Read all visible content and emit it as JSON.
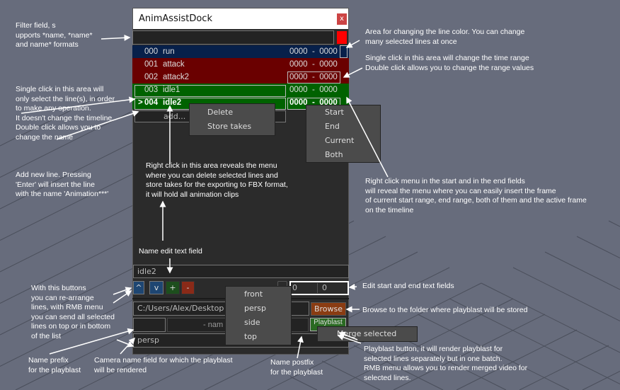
{
  "window": {
    "title": "AnimAssistDock",
    "close": "x"
  },
  "filter": {
    "value": "",
    "color": "#ff0000"
  },
  "rows": [
    {
      "marker": "",
      "num": "000",
      "name": "run",
      "range": "0000  -  0000",
      "bg": "#07204a"
    },
    {
      "marker": "",
      "num": "001",
      "name": "attack",
      "range": "0000  -  0000",
      "bg": "#6a0000"
    },
    {
      "marker": "",
      "num": "002",
      "name": "attack2",
      "range": "0000  -  0000",
      "bg": "#6a0000"
    },
    {
      "marker": "",
      "num": "003",
      "name": "idle1",
      "range": "0000  -  0000",
      "bg": "#006200"
    },
    {
      "marker": ">",
      "num": "004",
      "name": "idle2",
      "range": "0000  -  0000",
      "bg": "#006200"
    }
  ],
  "add_label": "add...",
  "line_menu": [
    "Delete",
    "Store takes"
  ],
  "range_menu": [
    "Start",
    "End",
    "Current",
    "Both"
  ],
  "name_field": "idle2",
  "buttons": {
    "up": "^",
    "down": "v",
    "add": "+",
    "remove": "-"
  },
  "start_field": "0",
  "end_field": "0",
  "path_field": "C:/Users/Alex/Desktop",
  "browse": "Browse",
  "prefix_field": "",
  "name_hint": "- nam",
  "playblast": "Playblast",
  "camera_field": "persp",
  "camera_menu": [
    "front",
    "persp",
    "side",
    "top"
  ],
  "playblast_menu": [
    "Merge selected"
  ],
  "notes": {
    "filter": "Filter field, s\nupports *name, *name*\nand name* formats",
    "select": "Single click in this area will\nonly select the line(s), in order\nto make any operation.\nIt doesn't change the timeline.\nDouble click allows you to\nchange the name",
    "add": "Add new line. Pressing\n'Enter' will insert the line\nwith the name 'Animation***'",
    "arrange": "With this buttons\nyou can re-arrange\nlines, with RMB menu\nyou can send all selected\nlines on top or in bottom\nof the list",
    "prefix": "Name prefix\nfor the playblast",
    "camera": "Camera name field for which the playblast\nwill be rendered",
    "postfix": "Name postfix\nfor the playblast",
    "color": "Area for changing the line color. You can change\nmany selected lines at once",
    "range": "Single click in this area will change the time range\nDouble click allows you to change the range values",
    "rmb_range": "Right click menu in the start and in the end fields\nwill reveal the menu where you can easily insert the frame\nof current start range, end range, both of them and the active frame\non the timeline",
    "rmb_lines": "Right click in this area reveals the menu\nwhere you can delete selected lines and\nstore takes for the exporting to FBX format,\nit will hold all animation clips",
    "name_edit": "Name edit text field",
    "edit_range": "Edit start and end text fields",
    "browse": "Browse to the folder where playblast will be stored",
    "playblast": "Playblast button, it will render playblast for\nselected lines separately but in one batch.\nRMB menu allows you to render merged video for\nselected lines."
  }
}
